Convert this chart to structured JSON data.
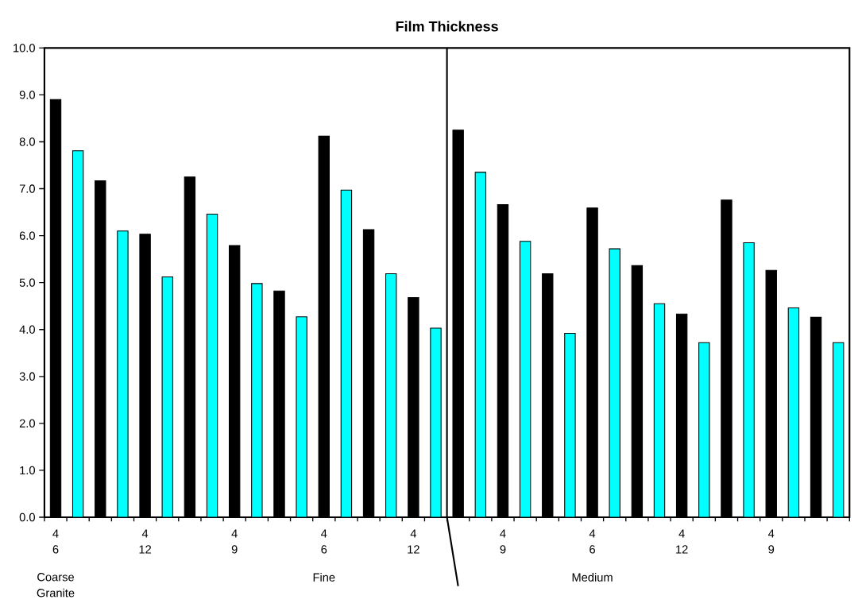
{
  "chart_data": {
    "type": "bar",
    "title": "Film Thickness",
    "categories": [
      "4 6",
      null,
      null,
      null,
      "4 12",
      null,
      null,
      null,
      "4 9",
      null,
      null,
      null,
      "4 6",
      null,
      null,
      null,
      "4 12",
      null,
      null,
      null,
      "4 9",
      null,
      null,
      null,
      "4 6",
      null,
      null,
      null,
      "4 12",
      null,
      null,
      null,
      "4 9",
      null,
      null,
      null
    ],
    "values": [
      8.9,
      7.81,
      7.17,
      6.1,
      6.03,
      5.12,
      7.25,
      6.46,
      5.79,
      4.98,
      4.82,
      4.27,
      8.12,
      6.97,
      6.13,
      5.19,
      4.68,
      4.03,
      8.25,
      7.35,
      6.66,
      5.88,
      5.19,
      3.92,
      6.59,
      5.72,
      5.36,
      4.55,
      4.33,
      3.72,
      6.76,
      5.85,
      5.26,
      4.46,
      4.26,
      3.72
    ],
    "colors": [
      "#000000",
      "#00ffff",
      "#000000",
      "#00ffff",
      "#000000",
      "#00ffff",
      "#000000",
      "#00ffff",
      "#000000",
      "#00ffff",
      "#000000",
      "#00ffff",
      "#000000",
      "#00ffff",
      "#000000",
      "#00ffff",
      "#000000",
      "#00ffff",
      "#000000",
      "#00ffff",
      "#000000",
      "#00ffff",
      "#000000",
      "#00ffff",
      "#000000",
      "#00ffff",
      "#000000",
      "#00ffff",
      "#000000",
      "#00ffff",
      "#000000",
      "#00ffff",
      "#000000",
      "#00ffff",
      "#000000",
      "#00ffff"
    ],
    "ylim": [
      0,
      10
    ],
    "yticks": [
      {
        "value": 0,
        "label": "0.0"
      },
      {
        "value": 1,
        "label": "1.0"
      },
      {
        "value": 2,
        "label": "2.0"
      },
      {
        "value": 3,
        "label": "3.0"
      },
      {
        "value": 4,
        "label": "4.0"
      },
      {
        "value": 5,
        "label": "5.0"
      },
      {
        "value": 6,
        "label": "6.0"
      },
      {
        "value": 7,
        "label": "7.0"
      },
      {
        "value": 8,
        "label": "8.0"
      },
      {
        "value": 9,
        "label": "9.0"
      },
      {
        "value": 10,
        "label": "10.0"
      }
    ],
    "annotations": [
      "Coarse Granite",
      "Fine",
      "Medium"
    ]
  }
}
